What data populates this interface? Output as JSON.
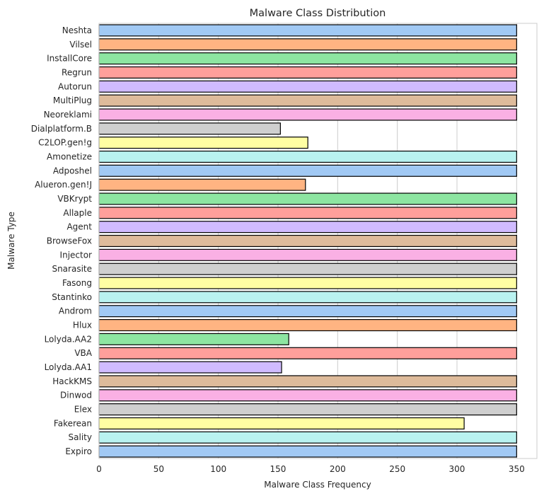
{
  "chart_data": {
    "type": "bar",
    "orientation": "horizontal",
    "title": "Malware Class Distribution",
    "xlabel": "Malware Class Frequency",
    "ylabel": "Malware Type",
    "xlim": [
      0,
      367
    ],
    "xticks": [
      0,
      50,
      100,
      150,
      200,
      250,
      300,
      350
    ],
    "grid": true,
    "categories": [
      "Neshta",
      "Vilsel",
      "InstallCore",
      "Regrun",
      "Autorun",
      "MultiPlug",
      "Neoreklami",
      "Dialplatform.B",
      "C2LOP.gen!g",
      "Amonetize",
      "Adposhel",
      "Alueron.gen!J",
      "VBKrypt",
      "Allaple",
      "Agent",
      "BrowseFox",
      "Injector",
      "Snarasite",
      "Fasong",
      "Stantinko",
      "Androm",
      "Hlux",
      "Lolyda.AA2",
      "VBA",
      "Lolyda.AA1",
      "HackKMS",
      "Dinwod",
      "Elex",
      "Fakerean",
      "Sality",
      "Expiro"
    ],
    "values": [
      350,
      350,
      350,
      350,
      350,
      350,
      350,
      152,
      175,
      350,
      350,
      173,
      350,
      350,
      350,
      350,
      350,
      350,
      350,
      350,
      350,
      350,
      159,
      350,
      153,
      350,
      350,
      350,
      306,
      350,
      350
    ],
    "palette": [
      "#a1c9f4",
      "#ffb482",
      "#8de5a1",
      "#ff9f9b",
      "#d0bbff",
      "#debb9b",
      "#fab0e4",
      "#cfcfcf",
      "#fffea3",
      "#b9f2f0"
    ]
  }
}
